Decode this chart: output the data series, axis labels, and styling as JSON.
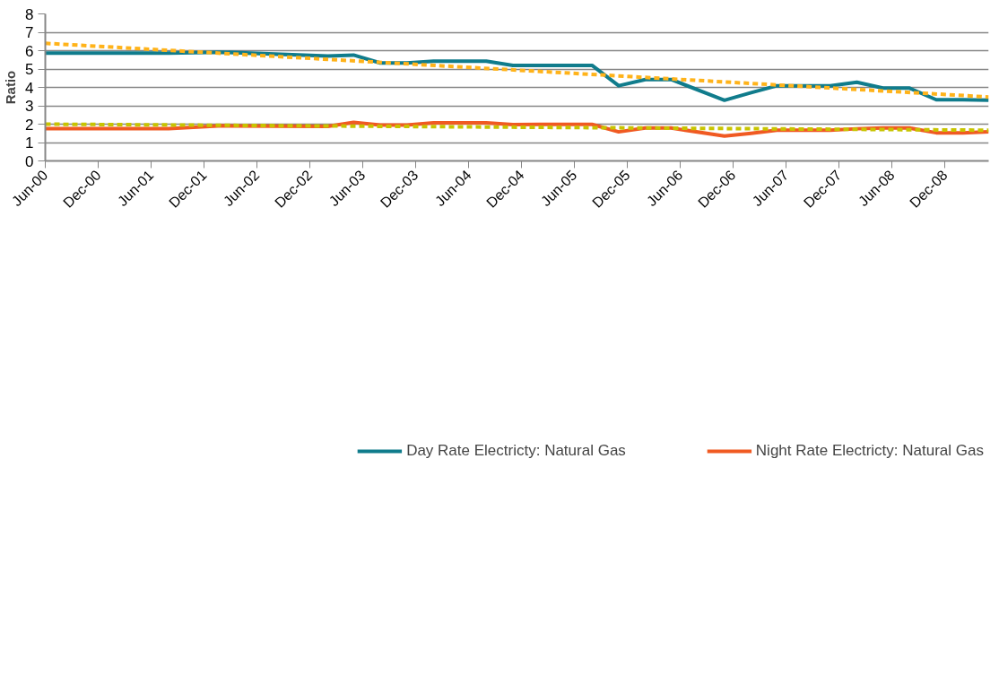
{
  "chart_data": {
    "type": "line",
    "ylabel": "Ratio",
    "xlim": [
      "2000-06",
      "2009-05"
    ],
    "xticks": [
      {
        "value": "2000-06",
        "label": "Jun-00"
      },
      {
        "value": "2000-12",
        "label": "Dec-00"
      },
      {
        "value": "2001-06",
        "label": "Jun-01"
      },
      {
        "value": "2001-12",
        "label": "Dec-01"
      },
      {
        "value": "2002-06",
        "label": "Jun-02"
      },
      {
        "value": "2002-12",
        "label": "Dec-02"
      },
      {
        "value": "2003-06",
        "label": "Jun-03"
      },
      {
        "value": "2003-12",
        "label": "Dec-03"
      },
      {
        "value": "2004-06",
        "label": "Jun-04"
      },
      {
        "value": "2004-12",
        "label": "Dec-04"
      },
      {
        "value": "2005-06",
        "label": "Jun-05"
      },
      {
        "value": "2005-12",
        "label": "Dec-05"
      },
      {
        "value": "2006-06",
        "label": "Jun-06"
      },
      {
        "value": "2006-12",
        "label": "Dec-06"
      },
      {
        "value": "2007-06",
        "label": "Jun-07"
      },
      {
        "value": "2007-12",
        "label": "Dec-07"
      },
      {
        "value": "2008-06",
        "label": "Jun-08"
      },
      {
        "value": "2008-12",
        "label": "Dec-08"
      }
    ],
    "ylim": [
      0,
      8
    ],
    "yticks": [
      0,
      1,
      2,
      3,
      4,
      5,
      6,
      7,
      8
    ],
    "grid": "y",
    "legend": "bottom",
    "marker": "none",
    "x": [
      "2000-06",
      "2001-08",
      "2002-02",
      "2003-02",
      "2003-05",
      "2003-08",
      "2003-11",
      "2004-02",
      "2004-08",
      "2004-11",
      "2005-02",
      "2005-08",
      "2005-11",
      "2006-02",
      "2006-05",
      "2006-11",
      "2007-02",
      "2007-05",
      "2007-11",
      "2008-02",
      "2008-05",
      "2008-08",
      "2008-11",
      "2009-02",
      "2009-05"
    ],
    "series": [
      {
        "name": "Day Rate Electricty: Natural Gas",
        "color": "#107c8c",
        "line_style": "solid",
        "values": [
          5.86,
          5.86,
          5.92,
          5.71,
          5.76,
          5.33,
          5.33,
          5.43,
          5.43,
          5.2,
          5.2,
          5.2,
          4.09,
          4.43,
          4.43,
          3.3,
          3.71,
          4.09,
          4.09,
          4.28,
          3.96,
          3.96,
          3.33,
          3.33,
          3.3
        ]
      },
      {
        "name": "Night Rate Electricty: Natural Gas",
        "color": "#f05a22",
        "line_style": "solid",
        "values": [
          1.76,
          1.76,
          1.91,
          1.88,
          2.1,
          1.95,
          1.95,
          2.07,
          2.07,
          1.97,
          1.99,
          1.99,
          1.58,
          1.79,
          1.79,
          1.35,
          1.5,
          1.67,
          1.67,
          1.75,
          1.79,
          1.79,
          1.53,
          1.53,
          1.58
        ]
      },
      {
        "color": "#ffb31a",
        "line_style": "dashed",
        "x": [
          "2000-06",
          "2009-05"
        ],
        "values": [
          6.4,
          3.48
        ]
      },
      {
        "color": "#c8c400",
        "line_style": "dashed",
        "x": [
          "2000-06",
          "2009-05"
        ],
        "values": [
          2.0,
          1.67
        ]
      }
    ]
  }
}
